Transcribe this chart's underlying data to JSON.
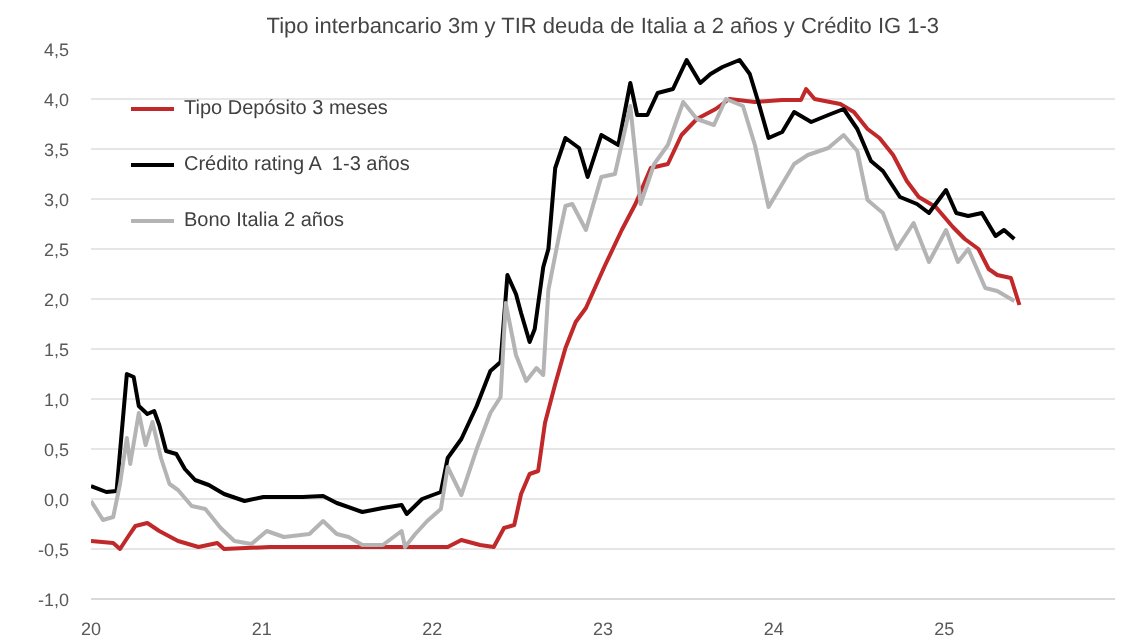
{
  "chart_data": {
    "type": "line",
    "title": "Tipo interbancario 3m y TIR deuda de Italia a 2 años y Crédito IG 1-3",
    "xlim": [
      20,
      26
    ],
    "xticks": [
      20,
      21,
      22,
      23,
      24,
      25
    ],
    "ylim": [
      -1.0,
      4.5
    ],
    "yticks": [
      {
        "value": -1.0,
        "label": "-1,0"
      },
      {
        "value": -0.5,
        "label": "-0,5"
      },
      {
        "value": 0.0,
        "label": "0,0"
      },
      {
        "value": 0.5,
        "label": "0,5"
      },
      {
        "value": 1.0,
        "label": "1,0"
      },
      {
        "value": 1.5,
        "label": "1,5"
      },
      {
        "value": 2.0,
        "label": "2,0"
      },
      {
        "value": 2.5,
        "label": "2,5"
      },
      {
        "value": 3.0,
        "label": "3,0"
      },
      {
        "value": 3.5,
        "label": "3,5"
      },
      {
        "value": 4.0,
        "label": "4,0"
      },
      {
        "value": 4.5,
        "label": "4,5"
      }
    ],
    "grid": "y",
    "legend": "top left",
    "line_style": "solid",
    "marker": "none",
    "series": [
      {
        "name": "Tipo Depósito 3 meses",
        "color": "#c0282a",
        "x": [
          20.0,
          20.13,
          20.17,
          20.22,
          20.26,
          20.33,
          20.4,
          20.51,
          20.63,
          20.74,
          20.78,
          21.05,
          21.44,
          21.82,
          22.09,
          22.17,
          22.28,
          22.36,
          22.42,
          22.48,
          22.52,
          22.57,
          22.62,
          22.66,
          22.72,
          22.78,
          22.84,
          22.9,
          23.01,
          23.11,
          23.19,
          23.28,
          23.38,
          23.46,
          23.55,
          23.66,
          23.74,
          23.89,
          24.05,
          24.16,
          24.19,
          24.24,
          24.39,
          24.47,
          24.55,
          24.62,
          24.7,
          24.78,
          24.85,
          24.95,
          25.05,
          25.12,
          25.2,
          25.26,
          25.31,
          25.39,
          25.44
        ],
        "values": [
          -0.42,
          -0.44,
          -0.5,
          -0.37,
          -0.27,
          -0.24,
          -0.32,
          -0.42,
          -0.48,
          -0.44,
          -0.5,
          -0.48,
          -0.48,
          -0.48,
          -0.48,
          -0.41,
          -0.46,
          -0.48,
          -0.29,
          -0.26,
          0.05,
          0.25,
          0.28,
          0.76,
          1.15,
          1.51,
          1.77,
          1.91,
          2.33,
          2.69,
          2.95,
          3.31,
          3.35,
          3.64,
          3.8,
          3.9,
          4.0,
          3.97,
          3.99,
          3.99,
          4.1,
          4.0,
          3.95,
          3.87,
          3.7,
          3.61,
          3.44,
          3.18,
          3.02,
          2.92,
          2.72,
          2.6,
          2.5,
          2.3,
          2.24,
          2.21,
          1.94
        ]
      },
      {
        "name": "Crédito rating A  1-3 años",
        "color": "#000000",
        "x": [
          20.0,
          20.09,
          20.15,
          20.21,
          20.25,
          20.28,
          20.33,
          20.37,
          20.4,
          20.44,
          20.5,
          20.55,
          20.61,
          20.69,
          20.78,
          20.9,
          21.01,
          21.24,
          21.36,
          21.44,
          21.59,
          21.71,
          21.82,
          21.85,
          21.94,
          22.05,
          22.09,
          22.17,
          22.26,
          22.34,
          22.4,
          22.44,
          22.49,
          22.52,
          22.57,
          22.6,
          22.65,
          22.68,
          22.72,
          22.78,
          22.86,
          22.91,
          22.99,
          23.09,
          23.16,
          23.2,
          23.26,
          23.32,
          23.41,
          23.49,
          23.57,
          23.63,
          23.7,
          23.8,
          23.86,
          23.91,
          23.97,
          24.05,
          24.12,
          24.22,
          24.32,
          24.41,
          24.49,
          24.57,
          24.64,
          24.74,
          24.84,
          24.91,
          25.01,
          25.07,
          25.14,
          25.22,
          25.3,
          25.35,
          25.41
        ],
        "values": [
          0.13,
          0.07,
          0.08,
          1.25,
          1.22,
          0.93,
          0.85,
          0.88,
          0.74,
          0.48,
          0.45,
          0.3,
          0.19,
          0.14,
          0.05,
          -0.02,
          0.02,
          0.02,
          0.03,
          -0.04,
          -0.13,
          -0.09,
          -0.06,
          -0.15,
          0.0,
          0.07,
          0.41,
          0.6,
          0.93,
          1.28,
          1.37,
          2.24,
          2.05,
          1.86,
          1.57,
          1.7,
          2.32,
          2.5,
          3.31,
          3.61,
          3.51,
          3.22,
          3.64,
          3.54,
          4.16,
          3.84,
          3.84,
          4.06,
          4.1,
          4.39,
          4.16,
          4.25,
          4.32,
          4.39,
          4.25,
          3.97,
          3.61,
          3.67,
          3.87,
          3.77,
          3.84,
          3.9,
          3.7,
          3.38,
          3.28,
          3.02,
          2.95,
          2.86,
          3.09,
          2.86,
          2.83,
          2.86,
          2.63,
          2.69,
          2.6
        ]
      },
      {
        "name": "Bono Italia 2 años",
        "color": "#b4b4b4",
        "x": [
          20.0,
          20.07,
          20.13,
          20.17,
          20.21,
          20.23,
          20.28,
          20.32,
          20.36,
          20.41,
          20.46,
          20.51,
          20.59,
          20.67,
          20.76,
          20.84,
          20.94,
          21.03,
          21.13,
          21.28,
          21.36,
          21.44,
          21.51,
          21.59,
          21.71,
          21.82,
          21.84,
          21.9,
          21.97,
          22.05,
          22.09,
          22.17,
          22.26,
          22.34,
          22.4,
          22.43,
          22.49,
          22.55,
          22.61,
          22.65,
          22.68,
          22.74,
          22.78,
          22.82,
          22.9,
          22.99,
          23.07,
          23.16,
          23.22,
          23.3,
          23.38,
          23.47,
          23.55,
          23.65,
          23.72,
          23.82,
          23.89,
          23.97,
          24.05,
          24.12,
          24.2,
          24.32,
          24.41,
          24.49,
          24.55,
          24.64,
          24.72,
          24.82,
          24.91,
          25.01,
          25.08,
          25.14,
          25.24,
          25.31,
          25.41
        ],
        "values": [
          -0.02,
          -0.21,
          -0.18,
          0.15,
          0.61,
          0.35,
          0.86,
          0.54,
          0.77,
          0.41,
          0.15,
          0.09,
          -0.07,
          -0.1,
          -0.29,
          -0.42,
          -0.45,
          -0.32,
          -0.38,
          -0.35,
          -0.22,
          -0.35,
          -0.38,
          -0.46,
          -0.46,
          -0.32,
          -0.48,
          -0.35,
          -0.22,
          -0.1,
          0.32,
          0.04,
          0.5,
          0.86,
          1.02,
          1.96,
          1.44,
          1.18,
          1.31,
          1.24,
          2.09,
          2.61,
          2.93,
          2.95,
          2.69,
          3.22,
          3.25,
          3.93,
          2.95,
          3.35,
          3.54,
          3.97,
          3.8,
          3.74,
          4.0,
          3.93,
          3.54,
          2.92,
          3.15,
          3.35,
          3.44,
          3.51,
          3.64,
          3.48,
          2.99,
          2.86,
          2.5,
          2.76,
          2.37,
          2.69,
          2.37,
          2.5,
          2.11,
          2.08,
          1.98
        ]
      }
    ]
  }
}
